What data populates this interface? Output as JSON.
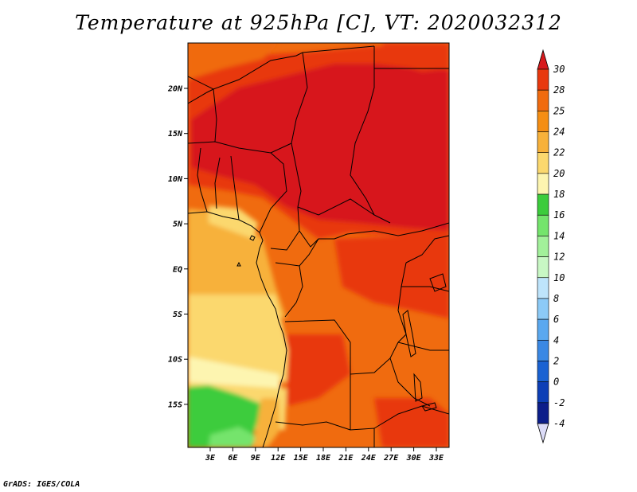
{
  "title": "Temperature at 925hPa [C], VT: 2020032312",
  "credit": "GrADS: IGES/COLA",
  "map": {
    "lon_ticks": [
      "3E",
      "6E",
      "9E",
      "12E",
      "15E",
      "18E",
      "21E",
      "24E",
      "27E",
      "30E",
      "33E"
    ],
    "lat_ticks": [
      "20N",
      "15N",
      "10N",
      "5N",
      "EQ",
      "5S",
      "10S",
      "15S"
    ]
  },
  "colorbar": {
    "levels": [
      "30",
      "28",
      "25",
      "24",
      "22",
      "20",
      "18",
      "16",
      "14",
      "12",
      "10",
      "8",
      "6",
      "4",
      "2",
      "0",
      "-2",
      "-4"
    ],
    "colors": [
      "#d7191c",
      "#e8380e",
      "#f06b0f",
      "#f58e13",
      "#f7b13a",
      "#fbd86e",
      "#fdf5b0",
      "#3ccc3c",
      "#74e46c",
      "#a2f09a",
      "#c8f7c4",
      "#bee4fb",
      "#8ccaf7",
      "#5aa8ef",
      "#3a88e4",
      "#1a62d2",
      "#0d3fb6",
      "#0c1e8a",
      "#0a0a5c"
    ]
  }
}
